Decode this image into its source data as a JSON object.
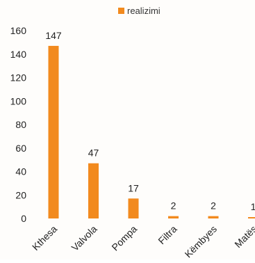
{
  "chart_data": {
    "type": "bar",
    "categories": [
      "Kthesa",
      "Valvola",
      "Pompa",
      "Filtra",
      "Këmbyes",
      "Matës"
    ],
    "series": [
      {
        "name": "realizimi",
        "values": [
          147,
          47,
          17,
          2,
          2,
          1
        ],
        "color": "#f28a1e"
      }
    ],
    "data_labels": [
      "147",
      "47",
      "17",
      "2",
      "2",
      "1"
    ],
    "y_ticks": [
      "0",
      "20",
      "40",
      "60",
      "80",
      "100",
      "120",
      "140",
      "160"
    ],
    "ylim": [
      0,
      160
    ],
    "grid": false,
    "legend_position": "top-center"
  }
}
